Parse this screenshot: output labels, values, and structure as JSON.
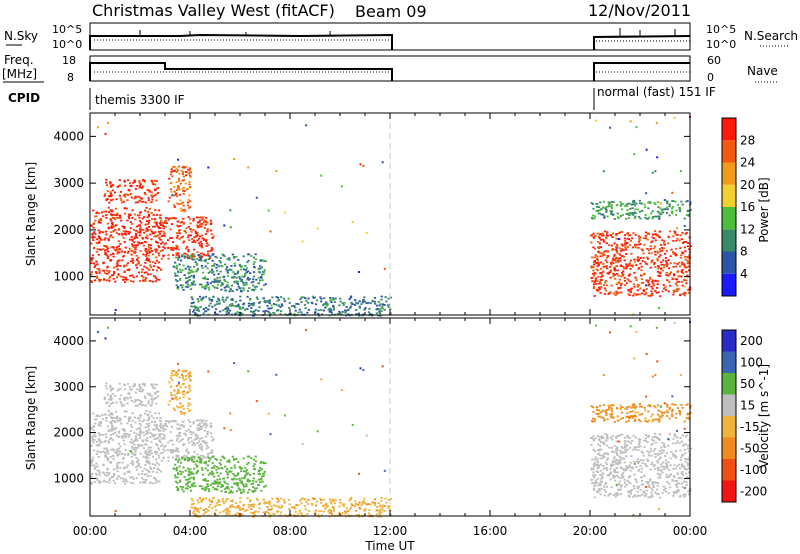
{
  "header": {
    "title": "Christmas Valley West (fitACF)",
    "beam": "Beam 09",
    "date": "12/Nov/2011"
  },
  "strip_labels": {
    "nsky": "N.Sky",
    "nsky_ticks": [
      "10^5",
      "10^0"
    ],
    "nsearch": "N.Search",
    "nsearch_ticks": [
      "10^5",
      "10^0"
    ],
    "freq_top": "Freq.",
    "freq_bottom": "[MHz]",
    "freq_ticks": [
      "18",
      "8"
    ],
    "nave": "Nave",
    "nave_ticks": [
      "60",
      "0"
    ],
    "cpid": "CPID",
    "cpid_left": "themis 3300 IF",
    "cpid_right": "normal (fast) 151 IF"
  },
  "colors": {
    "power": [
      "#1a1aff",
      "#2b55a8",
      "#3a8a6a",
      "#4cbf3a",
      "#f2d030",
      "#f29a1a",
      "#f25a10",
      "#ff1a0a"
    ],
    "velocity": [
      "#2a2ac8",
      "#3c64b4",
      "#5ab43c",
      "#bebebe",
      "#f0b43c",
      "#f08c1e",
      "#f05014",
      "#f01414"
    ],
    "ground_scatter": "#bebebe"
  },
  "chart_data": [
    {
      "type": "heatmap",
      "name": "power",
      "ylabel": "Slant Range [km]",
      "xlim": [
        "00:00",
        "24:00"
      ],
      "ylim": [
        180,
        4500
      ],
      "yticks": [
        1000,
        2000,
        3000,
        4000
      ],
      "xticks": [
        "00:00",
        "04:00",
        "08:00",
        "12:00",
        "16:00",
        "20:00",
        "00:00"
      ],
      "colorbar_label": "Power [dB]",
      "colorbar_ticks": [
        "4",
        "8",
        "12",
        "16",
        "20",
        "24",
        "28"
      ],
      "colorbar_range": [
        0,
        30
      ],
      "regions": [
        {
          "x": [
            0.0,
            2.8
          ],
          "y": [
            900,
            2500
          ],
          "value": 28
        },
        {
          "x": [
            0.5,
            2.7
          ],
          "y": [
            2600,
            3100
          ],
          "value": 28
        },
        {
          "x": [
            2.7,
            4.9
          ],
          "y": [
            1400,
            2300
          ],
          "value": 27
        },
        {
          "x": [
            3.1,
            4.0
          ],
          "y": [
            2400,
            3400
          ],
          "value": 24
        },
        {
          "x": [
            3.3,
            7.0
          ],
          "y": [
            700,
            1500
          ],
          "value": 9
        },
        {
          "x": [
            4.0,
            12.0
          ],
          "y": [
            180,
            600
          ],
          "value": 8
        },
        {
          "x": [
            20.0,
            24.0
          ],
          "y": [
            600,
            2000
          ],
          "value": 27
        },
        {
          "x": [
            20.0,
            24.0
          ],
          "y": [
            2250,
            2650
          ],
          "value": 11
        }
      ],
      "gap": {
        "x": [
          12.0,
          20.0
        ]
      }
    },
    {
      "type": "heatmap",
      "name": "velocity",
      "ylabel": "Slant Range [km]",
      "xlabel": "Time UT",
      "xlim": [
        "00:00",
        "24:00"
      ],
      "ylim": [
        180,
        4500
      ],
      "yticks": [
        1000,
        2000,
        3000,
        4000
      ],
      "xticks": [
        "00:00",
        "04:00",
        "08:00",
        "12:00",
        "16:00",
        "20:00",
        "00:00"
      ],
      "colorbar_label": "Velocity [m s^-1]",
      "colorbar_ticks": [
        "200",
        "100",
        "50",
        "15",
        "-15",
        "-50",
        "-100",
        "-200"
      ],
      "regions": [
        {
          "x": [
            0.0,
            2.8
          ],
          "y": [
            900,
            2500
          ],
          "value": 0
        },
        {
          "x": [
            0.5,
            2.7
          ],
          "y": [
            2600,
            3100
          ],
          "value": 0
        },
        {
          "x": [
            2.7,
            4.9
          ],
          "y": [
            1400,
            2300
          ],
          "value": 0
        },
        {
          "x": [
            3.1,
            4.0
          ],
          "y": [
            2400,
            3400
          ],
          "value": -40
        },
        {
          "x": [
            3.3,
            7.0
          ],
          "y": [
            700,
            1500
          ],
          "value": 40
        },
        {
          "x": [
            4.0,
            12.0
          ],
          "y": [
            180,
            600
          ],
          "value": -40
        },
        {
          "x": [
            20.0,
            24.0
          ],
          "y": [
            600,
            2000
          ],
          "value": 0
        },
        {
          "x": [
            20.0,
            24.0
          ],
          "y": [
            2250,
            2650
          ],
          "value": -60
        }
      ],
      "gap": {
        "x": [
          12.0,
          20.0
        ]
      }
    }
  ]
}
